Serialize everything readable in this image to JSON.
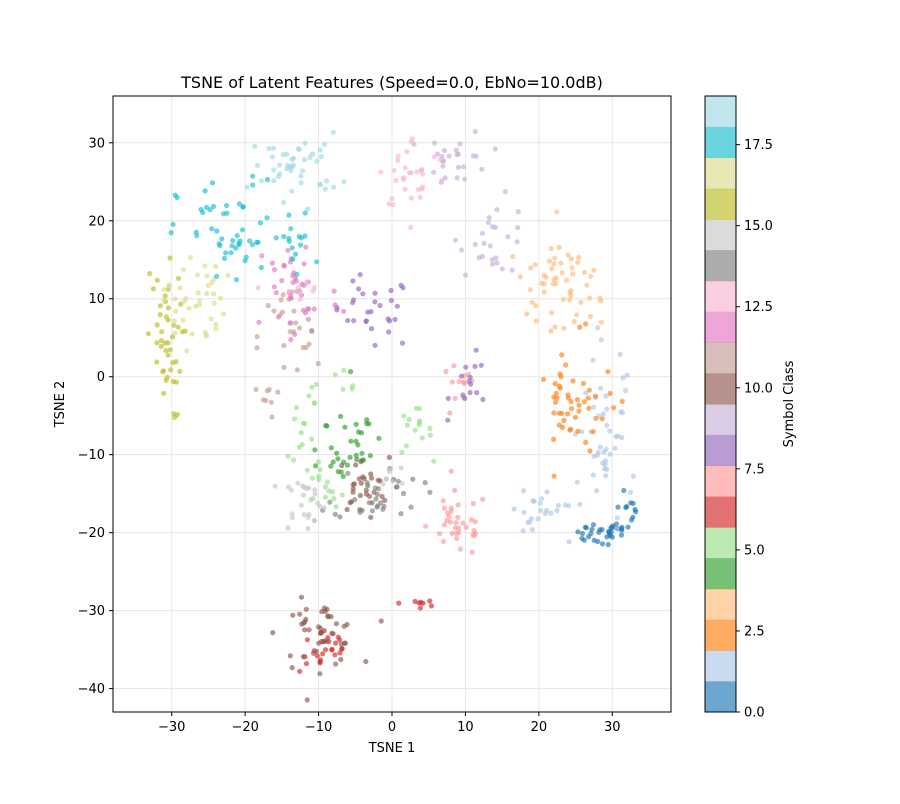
{
  "chart_data": {
    "type": "scatter",
    "title": "TSNE of Latent Features (Speed=0.0, EbNo=10.0dB)",
    "xlabel": "TSNE 1",
    "ylabel": "TSNE 2",
    "xlim": [
      -38,
      38
    ],
    "ylim": [
      -43,
      36
    ],
    "xticks": [
      -30,
      -20,
      -10,
      0,
      10,
      20,
      30
    ],
    "yticks": [
      -40,
      -30,
      -20,
      -10,
      0,
      10,
      20,
      30
    ],
    "grid": true,
    "marker_alpha": 0.65,
    "colormap": "tab20",
    "colorbar": {
      "label": "Symbol Class",
      "range": [
        0,
        19
      ],
      "ticks": [
        "0.0",
        "2.5",
        "5.0",
        "7.5",
        "10.0",
        "12.5",
        "15.0",
        "17.5"
      ],
      "tick_values": [
        0,
        2.5,
        5,
        7.5,
        10,
        12.5,
        15,
        17.5
      ],
      "colors": [
        "#1f77b4",
        "#aec7e8",
        "#ff7f0e",
        "#ffbb78",
        "#2ca02c",
        "#98df8a",
        "#d62728",
        "#ff9896",
        "#9467bd",
        "#c5b0d5",
        "#8c564b",
        "#c49c94",
        "#e377c2",
        "#f7b6d2",
        "#7f7f7f",
        "#c7c7c7",
        "#bcbd22",
        "#dbdb8d",
        "#17becf",
        "#9edae5"
      ]
    },
    "clusters": [
      {
        "class": 0,
        "center": [
          28,
          -17
        ],
        "spread": [
          4.0,
          3.5
        ],
        "count": 45,
        "shape": "arc",
        "arc": [
          -150,
          30
        ]
      },
      {
        "class": 1,
        "center": [
          29,
          -8
        ],
        "spread": [
          3.0,
          9.0
        ],
        "count": 45
      },
      {
        "class": 1,
        "center": [
          21,
          -17
        ],
        "spread": [
          3.0,
          3.0
        ],
        "count": 25
      },
      {
        "class": 2,
        "center": [
          25,
          -4
        ],
        "spread": [
          4.0,
          6.0
        ],
        "count": 50
      },
      {
        "class": 3,
        "center": [
          23,
          12
        ],
        "spread": [
          4.5,
          4.0
        ],
        "count": 55
      },
      {
        "class": 4,
        "center": [
          -6,
          -9
        ],
        "spread": [
          3.5,
          5.0
        ],
        "count": 35
      },
      {
        "class": 5,
        "center": [
          -6,
          -8
        ],
        "spread": [
          6.0,
          8.0
        ],
        "count": 35,
        "shape": "arc",
        "arc": [
          90,
          270
        ]
      },
      {
        "class": 5,
        "center": [
          3,
          -7
        ],
        "spread": [
          2.0,
          2.5
        ],
        "count": 15
      },
      {
        "class": 6,
        "center": [
          -9,
          -35
        ],
        "spread": [
          3.0,
          2.5
        ],
        "count": 25
      },
      {
        "class": 6,
        "center": [
          4,
          -29
        ],
        "spread": [
          2.5,
          1.0
        ],
        "count": 8
      },
      {
        "class": 7,
        "center": [
          9,
          -19
        ],
        "spread": [
          3.5,
          3.5
        ],
        "count": 35
      },
      {
        "class": 7,
        "center": [
          9,
          -2
        ],
        "spread": [
          2.0,
          3.0
        ],
        "count": 12
      },
      {
        "class": 8,
        "center": [
          -3,
          8
        ],
        "spread": [
          5.0,
          4.0
        ],
        "count": 30
      },
      {
        "class": 8,
        "center": [
          11,
          -1
        ],
        "spread": [
          2.5,
          3.0
        ],
        "count": 15
      },
      {
        "class": 9,
        "center": [
          9,
          28
        ],
        "spread": [
          3.5,
          3.0
        ],
        "count": 25
      },
      {
        "class": 9,
        "center": [
          14,
          18
        ],
        "spread": [
          4.0,
          4.0
        ],
        "count": 25
      },
      {
        "class": 10,
        "center": [
          -10,
          -33
        ],
        "spread": [
          4.5,
          3.5
        ],
        "count": 45
      },
      {
        "class": 10,
        "center": [
          -4,
          -14
        ],
        "spread": [
          3.0,
          3.0
        ],
        "count": 30
      },
      {
        "class": 11,
        "center": [
          -14,
          5
        ],
        "spread": [
          3.5,
          6.0
        ],
        "count": 25
      },
      {
        "class": 11,
        "center": [
          -17,
          -3
        ],
        "spread": [
          1.5,
          2.0
        ],
        "count": 8
      },
      {
        "class": 12,
        "center": [
          -13,
          11
        ],
        "spread": [
          5.0,
          7.0
        ],
        "count": 40
      },
      {
        "class": 13,
        "center": [
          3,
          26
        ],
        "spread": [
          4.0,
          4.0
        ],
        "count": 30
      },
      {
        "class": 13,
        "center": [
          -13,
          11
        ],
        "spread": [
          3.0,
          3.0
        ],
        "count": 8
      },
      {
        "class": 14,
        "center": [
          -2,
          -15
        ],
        "spread": [
          5.0,
          3.0
        ],
        "count": 30
      },
      {
        "class": 15,
        "center": [
          -12,
          -16
        ],
        "spread": [
          2.5,
          3.0
        ],
        "count": 25
      },
      {
        "class": 15,
        "center": [
          0,
          -13
        ],
        "spread": [
          2.0,
          2.0
        ],
        "count": 8
      },
      {
        "class": 16,
        "center": [
          -31,
          4
        ],
        "spread": [
          2.0,
          8.0
        ],
        "count": 45
      },
      {
        "class": 17,
        "center": [
          -27,
          10
        ],
        "spread": [
          3.5,
          5.0
        ],
        "count": 40
      },
      {
        "class": 18,
        "center": [
          -22,
          18
        ],
        "spread": [
          6.0,
          6.0
        ],
        "count": 50
      },
      {
        "class": 18,
        "center": [
          -13,
          17
        ],
        "spread": [
          2.0,
          4.0
        ],
        "count": 15
      },
      {
        "class": 19,
        "center": [
          -13,
          27
        ],
        "spread": [
          5.0,
          3.5
        ],
        "count": 45
      }
    ]
  }
}
